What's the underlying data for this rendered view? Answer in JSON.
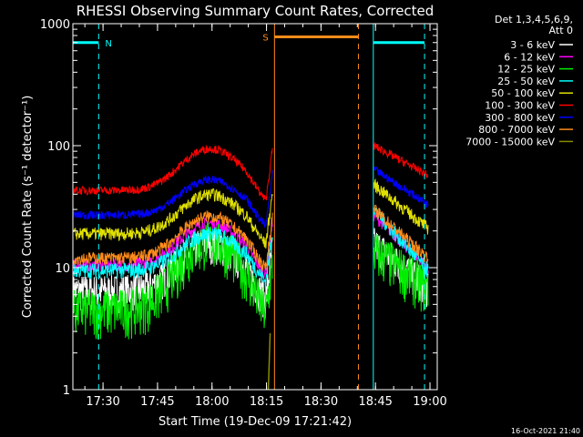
{
  "chart_data": {
    "type": "line",
    "title": "RHESSI Observing Summary Count Rates, Corrected",
    "xlabel": "Start Time (19-Dec-09 17:21:42)",
    "ylabel": "Corrected Count Rate (s⁻¹ detector⁻¹)",
    "yscale": "log",
    "ylim": [
      1,
      1000
    ],
    "xlim_min": [
      1041.7,
      1142
    ],
    "x_ticks": [
      {
        "label": "17:30",
        "min": 1050
      },
      {
        "label": "17:45",
        "min": 1065
      },
      {
        "label": "18:00",
        "min": 1080
      },
      {
        "label": "18:15",
        "min": 1095
      },
      {
        "label": "18:30",
        "min": 1110
      },
      {
        "label": "18:45",
        "min": 1125
      },
      {
        "label": "19:00",
        "min": 1140
      }
    ],
    "y_ticks": [
      {
        "label": "1",
        "value": 1
      },
      {
        "label": "10",
        "value": 10
      },
      {
        "label": "100",
        "value": 100
      },
      {
        "label": "1000",
        "value": 1000
      }
    ],
    "legend_header": [
      "Det 1,3,4,5,6,9,",
      "Att 0"
    ],
    "legend_position": "right",
    "series": [
      {
        "name": "3 - 6 keV",
        "color": "#ffffff",
        "base": 6.5,
        "bump": 2.5,
        "end": [
          16,
          7
        ],
        "noise": 0.35
      },
      {
        "name": "6 - 12 keV",
        "color": "#ff00ff",
        "base": 10.5,
        "bump": 2.2,
        "end": [
          27,
          10
        ],
        "noise": 0.12
      },
      {
        "name": "12 - 25 keV",
        "color": "#00ee00",
        "base": 4.6,
        "bump": 3.6,
        "end": [
          14,
          7
        ],
        "noise": 0.45
      },
      {
        "name": "25 - 50 keV",
        "color": "#00ffff",
        "base": 9.5,
        "bump": 2.0,
        "end": [
          30,
          9.5
        ],
        "noise": 0.15
      },
      {
        "name": "50 - 100 keV",
        "color": "#e0e000",
        "base": 19,
        "bump": 2.1,
        "end": [
          48,
          21
        ],
        "noise": 0.12
      },
      {
        "name": "100 - 300 keV",
        "color": "#ff0000",
        "base": 43,
        "bump": 2.2,
        "end": [
          100,
          57
        ],
        "noise": 0.08
      },
      {
        "name": "300 - 800 keV",
        "color": "#0000ff",
        "base": 27,
        "bump": 1.95,
        "end": [
          64,
          33
        ],
        "noise": 0.08
      },
      {
        "name": "800 - 7000 keV",
        "color": "#ff8c1a",
        "base": 12,
        "bump": 2.2,
        "end": [
          30,
          12
        ],
        "noise": 0.12
      },
      {
        "name": "7000 - 15000 keV",
        "color": "#8b8b00",
        "base": null,
        "bump": null,
        "end": null,
        "noise": 0
      }
    ],
    "gaps_min": [
      [
        1096.7,
        1124.4
      ]
    ],
    "attenuator_markers": [
      {
        "label": "N",
        "color": "#00ffff",
        "x_min": [
          1041.7,
          1048.8
        ],
        "y": 700,
        "dashed_x_min": 1048.8
      },
      {
        "label": "S",
        "color": "#ff8c1a",
        "x_min": [
          1097.2,
          1120.3
        ],
        "y": 780,
        "dashed_x_min": 1120.3
      },
      {
        "label": "",
        "color": "#00ffff",
        "x_min": [
          1124.4,
          1138.5
        ],
        "y": 700,
        "dashed_x_min": 1138.5
      }
    ],
    "timestamp": "16-Oct-2021 21:40"
  }
}
